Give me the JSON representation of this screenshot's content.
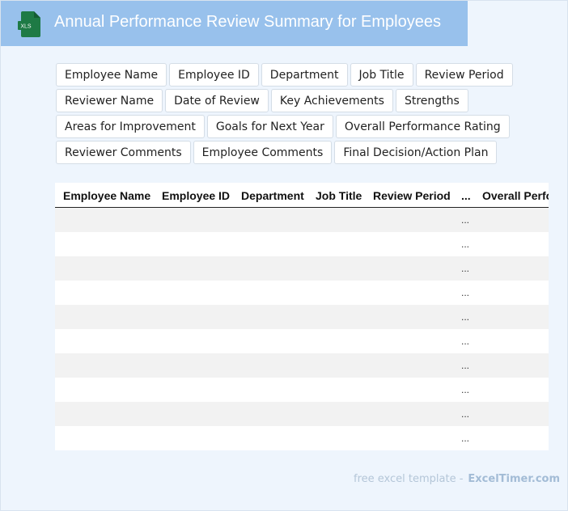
{
  "header": {
    "title": "Annual Performance Review Summary for Employees",
    "icon": "xls-file-icon",
    "icon_text": "XLS",
    "icon_color": "#1e7a45",
    "background": "#98c1ec"
  },
  "chips": [
    [
      "Employee Name",
      "Employee ID",
      "Department",
      "Job Title",
      "Review Period"
    ],
    [
      "Reviewer Name",
      "Date of Review",
      "Key Achievements",
      "Strengths"
    ],
    [
      "Areas for Improvement",
      "Goals for Next Year",
      "Overall Performance Rating"
    ],
    [
      "Reviewer Comments",
      "Employee Comments",
      "Final Decision/Action Plan"
    ]
  ],
  "table": {
    "headers": [
      "Employee Name",
      "Employee ID",
      "Department",
      "Job Title",
      "Review Period",
      "...",
      "Overall Performance Rating"
    ],
    "row_count": 10,
    "ellipsis": "..."
  },
  "footer": {
    "text": "free excel template -",
    "brand": "ExcelTimer.com"
  }
}
